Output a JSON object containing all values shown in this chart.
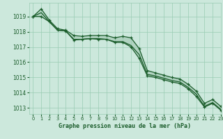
{
  "title": "Graphe pression niveau de la mer (hPa)",
  "background_color": "#cce8dc",
  "grid_color": "#99ccb3",
  "line_color_main": "#1a5c2a",
  "xlim": [
    -0.5,
    23
  ],
  "ylim": [
    1012.6,
    1019.9
  ],
  "yticks": [
    1013,
    1014,
    1015,
    1016,
    1017,
    1018,
    1019
  ],
  "xticks": [
    0,
    1,
    2,
    3,
    4,
    5,
    6,
    7,
    8,
    9,
    10,
    11,
    12,
    13,
    14,
    15,
    16,
    17,
    18,
    19,
    20,
    21,
    22,
    23
  ],
  "series_top": [
    1019.0,
    1019.5,
    1018.75,
    1018.2,
    1018.1,
    1017.75,
    1017.7,
    1017.75,
    1017.75,
    1017.75,
    1017.6,
    1017.7,
    1017.6,
    1016.9,
    1015.45,
    1015.3,
    1015.15,
    1015.0,
    1014.9,
    1014.55,
    1014.1,
    1013.3,
    1013.55,
    1013.1
  ],
  "series_mid": [
    1019.0,
    1019.25,
    1018.65,
    1018.1,
    1018.05,
    1017.5,
    1017.5,
    1017.55,
    1017.55,
    1017.5,
    1017.35,
    1017.35,
    1017.1,
    1016.5,
    1015.2,
    1015.1,
    1014.95,
    1014.8,
    1014.7,
    1014.35,
    1013.9,
    1013.1,
    1013.35,
    1012.9
  ],
  "series_bot": [
    1019.0,
    1019.0,
    1018.65,
    1018.1,
    1018.05,
    1017.45,
    1017.5,
    1017.55,
    1017.5,
    1017.5,
    1017.3,
    1017.3,
    1017.0,
    1016.25,
    1015.1,
    1015.0,
    1014.85,
    1014.7,
    1014.6,
    1014.25,
    1013.75,
    1013.05,
    1013.3,
    1012.85
  ]
}
